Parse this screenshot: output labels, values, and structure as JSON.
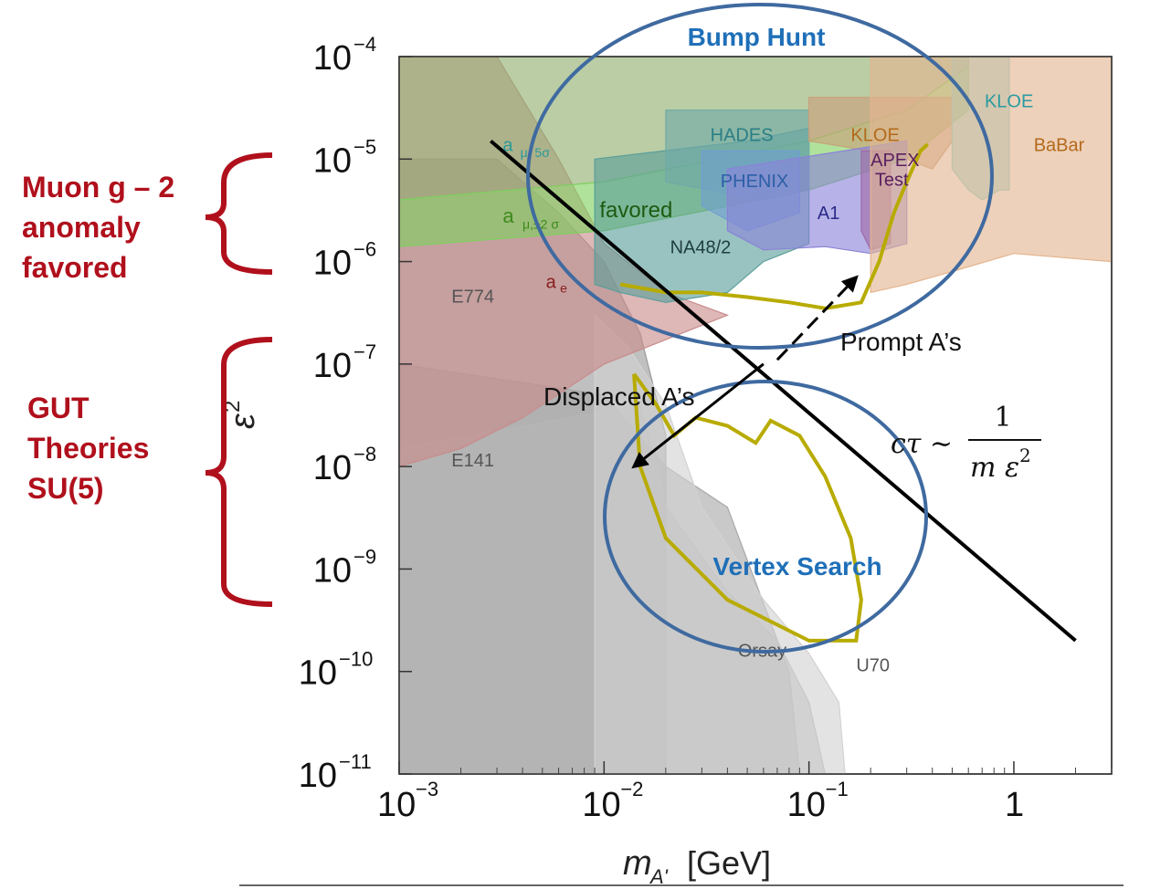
{
  "chart_data": {
    "type": "area",
    "xlabel": "m_A' [GeV]",
    "xlabel_main": "m",
    "xlabel_sub": "A'",
    "xlabel_unit": "[GeV]",
    "ylabel": "ε",
    "ylabel_exp": "2",
    "x_scale": "log",
    "y_scale": "log",
    "xlim": [
      0.001,
      3
    ],
    "ylim": [
      1e-11,
      0.0001
    ],
    "x_ticks": [
      {
        "base": "10",
        "exp": "−3",
        "value": 0.001
      },
      {
        "base": "10",
        "exp": "−2",
        "value": 0.01
      },
      {
        "base": "10",
        "exp": "−1",
        "value": 0.1
      },
      {
        "base": "1",
        "exp": "",
        "value": 1
      }
    ],
    "y_ticks": [
      {
        "base": "10",
        "exp": "−4",
        "value": 0.0001
      },
      {
        "base": "10",
        "exp": "−5",
        "value": 1e-05
      },
      {
        "base": "10",
        "exp": "−6",
        "value": 1e-06
      },
      {
        "base": "10",
        "exp": "−7",
        "value": 1e-07
      },
      {
        "base": "10",
        "exp": "−8",
        "value": 1e-08
      },
      {
        "base": "10",
        "exp": "−9",
        "value": 1e-09
      },
      {
        "base": "10",
        "exp": "−10",
        "value": 1e-10
      },
      {
        "base": "10",
        "exp": "−11",
        "value": 1e-11
      }
    ],
    "excluded_regions": [
      {
        "name": "E774",
        "color": "#9a9a9a",
        "label_at": [
          0.0018,
          4e-07
        ],
        "polygon": [
          [
            0.001,
            1e-05
          ],
          [
            0.003,
            1e-05
          ],
          [
            0.006,
            3e-06
          ],
          [
            0.01,
            1e-06
          ],
          [
            0.015,
            2e-07
          ],
          [
            0.02,
            2e-08
          ],
          [
            0.02,
            1e-11
          ],
          [
            0.001,
            1e-11
          ]
        ]
      },
      {
        "name": "E141",
        "color": "#a8a8a8",
        "label_at": [
          0.0018,
          1e-08
        ],
        "polygon": [
          [
            0.001,
            1e-07
          ],
          [
            0.01,
            5e-08
          ],
          [
            0.02,
            1e-08
          ],
          [
            0.04,
            4e-09
          ],
          [
            0.08,
            1e-10
          ],
          [
            0.09,
            1e-11
          ],
          [
            0.001,
            1e-11
          ]
        ]
      },
      {
        "name": "Orsay",
        "color": "#b6b6b6",
        "label_at": [
          0.045,
          1.4e-10
        ],
        "polygon": [
          [
            0.001,
            1.5e-08
          ],
          [
            0.015,
            4e-08
          ],
          [
            0.02,
            4e-09
          ],
          [
            0.04,
            6e-10
          ],
          [
            0.07,
            2e-10
          ],
          [
            0.1,
            5e-11
          ],
          [
            0.12,
            1e-11
          ],
          [
            0.001,
            1e-11
          ]
        ]
      },
      {
        "name": "U70",
        "color": "#d2d2d2",
        "label_at": [
          0.17,
          1e-10
        ],
        "polygon": [
          [
            0.009,
            3e-07
          ],
          [
            0.013,
            1.5e-07
          ],
          [
            0.02,
            4e-08
          ],
          [
            0.03,
            4e-09
          ],
          [
            0.06,
            5e-10
          ],
          [
            0.1,
            1.5e-10
          ],
          [
            0.14,
            5e-11
          ],
          [
            0.15,
            1e-11
          ],
          [
            0.009,
            1e-11
          ]
        ]
      },
      {
        "name": "a_e",
        "color": "#c98b8b",
        "label_at": [
          0.0055,
          7e-07
        ],
        "polygon": [
          [
            0.001,
            0.0001
          ],
          [
            0.003,
            0.0001
          ],
          [
            0.006,
            1e-05
          ],
          [
            0.01,
            1.5e-06
          ],
          [
            0.02,
            5e-07
          ],
          [
            0.04,
            3e-07
          ],
          [
            0.01,
            1e-07
          ],
          [
            0.004,
            3e-08
          ],
          [
            0.002,
            1.5e-08
          ],
          [
            0.001,
            1e-08
          ]
        ]
      },
      {
        "name": "a_μ,5σ",
        "color": "#8fae6d",
        "label_at": [
          0.0035,
          1.4e-05
        ],
        "polygon": [
          [
            0.001,
            0.0001
          ],
          [
            0.006,
            0.0001
          ],
          [
            0.02,
            0.0001
          ],
          [
            0.1,
            0.0001
          ],
          [
            0.3,
            0.0001
          ],
          [
            0.6,
            0.0001
          ],
          [
            0.6,
            8e-05
          ],
          [
            0.3,
            3e-05
          ],
          [
            0.1,
            1.5e-05
          ],
          [
            0.01,
            6e-06
          ],
          [
            0.001,
            4e-06
          ]
        ]
      },
      {
        "name": "a_μ,±2σ favored",
        "color": "#7fd060",
        "label_at": [
          0.0035,
          2.7e-06
        ],
        "polygon": [
          [
            0.001,
            4e-06
          ],
          [
            0.01,
            6e-06
          ],
          [
            0.1,
            1.5e-05
          ],
          [
            0.3,
            3e-05
          ],
          [
            0.6,
            8e-05
          ],
          [
            0.6,
            3e-05
          ],
          [
            0.3,
            1e-05
          ],
          [
            0.1,
            5e-06
          ],
          [
            0.01,
            2e-06
          ],
          [
            0.001,
            1.4e-06
          ]
        ]
      },
      {
        "name": "NA48/2",
        "color": "#5a9e9a",
        "label_at": [
          0.025,
          1.3e-06
        ],
        "polygon": [
          [
            0.009,
            1e-05
          ],
          [
            0.05,
            1.5e-05
          ],
          [
            0.1,
            2e-05
          ],
          [
            0.1,
            1.5e-06
          ],
          [
            0.06,
            1e-06
          ],
          [
            0.04,
            5e-07
          ],
          [
            0.02,
            4e-07
          ],
          [
            0.012,
            5e-07
          ],
          [
            0.009,
            6e-07
          ]
        ]
      },
      {
        "name": "HADES",
        "color": "#6fa9a6",
        "label_at": [
          0.045,
          1.5e-05
        ],
        "polygon": [
          [
            0.02,
            3e-05
          ],
          [
            0.1,
            3e-05
          ],
          [
            0.1,
            5e-06
          ],
          [
            0.06,
            4e-06
          ],
          [
            0.02,
            6e-06
          ]
        ]
      },
      {
        "name": "KLOE",
        "color": "#c9a07a",
        "label_at": [
          0.17,
          1.5e-05
        ],
        "polygon": [
          [
            0.1,
            4e-05
          ],
          [
            0.5,
            4e-05
          ],
          [
            0.5,
            1.5e-05
          ],
          [
            0.4,
            8e-06
          ],
          [
            0.3,
            1e-05
          ],
          [
            0.2,
            1.2e-05
          ],
          [
            0.1,
            1.5e-05
          ]
        ]
      },
      {
        "name": "PHENIX",
        "color": "#6f9fd0",
        "label_at": [
          0.05,
          5.5e-06
        ],
        "polygon": [
          [
            0.03,
            1.2e-05
          ],
          [
            0.09,
            1.2e-05
          ],
          [
            0.09,
            3e-06
          ],
          [
            0.05,
            2e-06
          ],
          [
            0.03,
            3.5e-06
          ]
        ]
      },
      {
        "name": "A1",
        "color": "#8b82d8",
        "label_at": [
          0.13,
          3e-06
        ],
        "polygon": [
          [
            0.04,
            8e-06
          ],
          [
            0.3,
            1.5e-05
          ],
          [
            0.3,
            1.5e-06
          ],
          [
            0.2,
            1.2e-06
          ],
          [
            0.12,
            1.4e-06
          ],
          [
            0.06,
            1.3e-06
          ],
          [
            0.04,
            2e-06
          ]
        ]
      },
      {
        "name": "APEX Test",
        "color": "#a06aa8",
        "label_at": [
          0.25,
          7e-06
        ],
        "polygon": [
          [
            0.18,
            1.2e-05
          ],
          [
            0.25,
            1.2e-05
          ],
          [
            0.25,
            1.5e-06
          ],
          [
            0.2,
            1.3e-06
          ],
          [
            0.18,
            2e-06
          ]
        ]
      },
      {
        "name": "KLOE",
        "color": "#8cd4d2",
        "label_at": [
          0.72,
          3e-05
        ],
        "polygon": [
          [
            0.5,
            0.0001
          ],
          [
            0.95,
            0.0001
          ],
          [
            0.95,
            5e-06
          ],
          [
            0.85,
            5e-06
          ],
          [
            0.7,
            4e-06
          ],
          [
            0.6,
            5e-06
          ],
          [
            0.5,
            8e-06
          ]
        ]
      },
      {
        "name": "BaBar",
        "color": "#e3b58f",
        "label_at": [
          1.3,
          1.2e-05
        ],
        "polygon": [
          [
            0.2,
            0.0001
          ],
          [
            3,
            0.0001
          ],
          [
            3,
            1e-06
          ],
          [
            1,
            1.2e-06
          ],
          [
            0.5,
            8e-07
          ],
          [
            0.3,
            6e-07
          ],
          [
            0.2,
            5e-07
          ]
        ]
      }
    ],
    "projection_curves": [
      {
        "name": "bump-hunt-reach",
        "color": "#b8ab00",
        "points": [
          [
            0.012,
            6e-07
          ],
          [
            0.02,
            5e-07
          ],
          [
            0.03,
            5e-07
          ],
          [
            0.05,
            4.5e-07
          ],
          [
            0.08,
            4e-07
          ],
          [
            0.12,
            3.5e-07
          ],
          [
            0.18,
            4e-07
          ],
          [
            0.22,
            1e-06
          ],
          [
            0.26,
            3e-06
          ],
          [
            0.3,
            6e-06
          ],
          [
            0.35,
            1.2e-05
          ],
          [
            0.38,
            1.4e-05
          ]
        ]
      },
      {
        "name": "vertex-search-reach",
        "color": "#b8ab00",
        "points": [
          [
            0.014,
            8e-08
          ],
          [
            0.018,
            4e-08
          ],
          [
            0.022,
            2e-08
          ],
          [
            0.028,
            3e-08
          ],
          [
            0.04,
            2.5e-08
          ],
          [
            0.055,
            1.7e-08
          ],
          [
            0.065,
            2.8e-08
          ],
          [
            0.09,
            2e-08
          ],
          [
            0.12,
            8e-09
          ],
          [
            0.16,
            2e-09
          ],
          [
            0.18,
            5e-10
          ],
          [
            0.17,
            2e-10
          ],
          [
            0.1,
            2e-10
          ],
          [
            0.04,
            5e-10
          ],
          [
            0.02,
            2e-09
          ],
          [
            0.015,
            1e-08
          ],
          [
            0.014,
            8e-08
          ]
        ]
      }
    ],
    "overlay_line": {
      "name": "cτ boundary",
      "from": [
        0.0028,
        1.5e-05
      ],
      "to": [
        2.0,
        2e-10
      ],
      "color": "#000000"
    },
    "prompt_arrow": {
      "from": [
        0.07,
        1.1e-07
      ],
      "to": [
        0.17,
        7e-07
      ]
    },
    "displaced_arrow": {
      "from": [
        0.06,
        1e-07
      ],
      "to": [
        0.014,
        1e-08
      ]
    }
  },
  "annotations": {
    "bump_hunt": "Bump Hunt",
    "vertex_search": "Vertex Search",
    "prompt": "Prompt A’s",
    "displaced": "Displaced A’s",
    "formula_lhs": "cτ ∼",
    "formula_num": "1",
    "formula_den": "m ε",
    "formula_den_exp": "2"
  },
  "side_labels": {
    "muon": [
      "Muon g – 2",
      "anomaly",
      "favored"
    ],
    "gut": [
      "GUT",
      "Theories",
      "SU(5)"
    ]
  },
  "region_text": {
    "E774": "E774",
    "E141": "E141",
    "Orsay": "Orsay",
    "U70": "U70",
    "HADES": "HADES",
    "KLOE": "KLOE",
    "KLOE2": "KLOE",
    "BaBar": "BaBar",
    "PHENIX": "PHENIX",
    "A1": "A1",
    "APEX": "APEX",
    "APEX2": "Test",
    "NA48": "NA48/2",
    "amu5": "a",
    "amu5_sub": "μ, 5σ",
    "amu2": "a",
    "amu2_sub": "μ,±2 σ",
    "amu2_fav": "favored",
    "ae": "a",
    "ae_sub": "e"
  },
  "colors": {
    "accent_red": "#b0101c",
    "accent_blue": "#1f6fb8",
    "circle_stroke": "#3f6aa0",
    "curve_yellow": "#b8ab00"
  }
}
